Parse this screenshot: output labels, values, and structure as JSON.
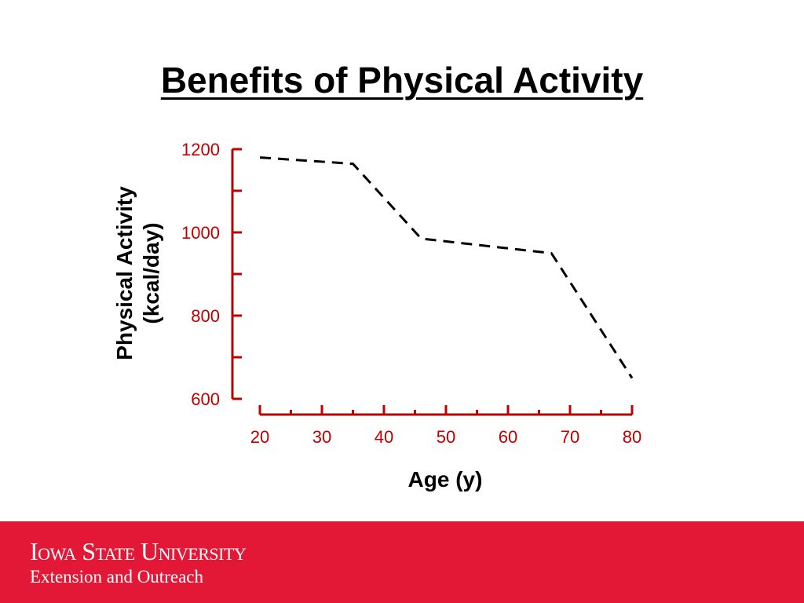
{
  "slide": {
    "title": "Benefits of Physical Activity"
  },
  "footer": {
    "university": "Iowa State University",
    "subtitle": "Extension and Outreach",
    "background_color": "#e31837"
  },
  "chart_data": {
    "type": "line",
    "line_style": "dashed",
    "line_color": "#000000",
    "axis_color": "#c00000",
    "x": [
      20,
      35,
      46,
      67,
      80
    ],
    "y": [
      1180,
      1165,
      985,
      950,
      650
    ],
    "xlabel": "Age (y)",
    "ylabel_lines": [
      "Physical Activity",
      "(kcal/day)"
    ],
    "xlim": [
      20,
      80
    ],
    "ylim": [
      600,
      1200
    ],
    "x_ticks": [
      "20",
      "30",
      "40",
      "50",
      "60",
      "70",
      "80"
    ],
    "y_ticks": [
      "1200",
      "1000",
      "800",
      "600"
    ],
    "grid": false
  }
}
